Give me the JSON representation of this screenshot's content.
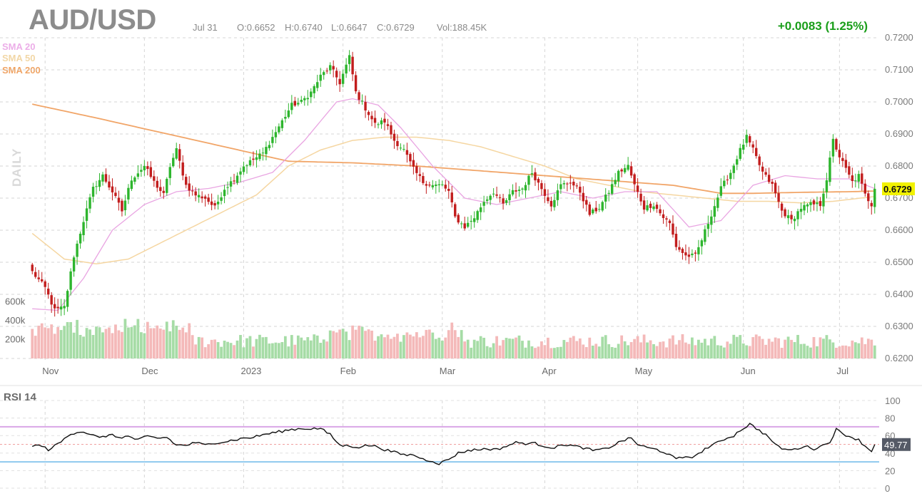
{
  "header": {
    "symbol": "AUD/USD",
    "date": "Jul 31",
    "open": "O:0.6652",
    "high": "H:0.6740",
    "low": "L:0.6647",
    "close": "C:0.6729",
    "volume": "Vol:188.45K",
    "change": "+0.0083 (1.25%)"
  },
  "legend": {
    "sma20": "SMA 20",
    "sma50": "SMA 50",
    "sma200": "SMA 200",
    "period_label": "DAILY"
  },
  "colors": {
    "up": "#2db52d",
    "down": "#c21d1d",
    "volume_up": "#a6dca6",
    "volume_down": "#f4b9b9",
    "sma20": "#e8a0e0",
    "sma50": "#f4d49c",
    "sma200": "#f0a060",
    "price_tag": "#f2f200",
    "rsi_line": "#111111",
    "rsi_upper": "#d9a6e6",
    "rsi_lower": "#8ec8ee",
    "rsi_mid": "#f0a0a0",
    "rsi_tag": "#555a66",
    "change": "#1a9e1a"
  },
  "chart_data": [
    {
      "type": "candlestick",
      "title": "AUD/USD",
      "x_ticks": [
        "Nov",
        "Dec",
        "2023",
        "Feb",
        "Mar",
        "Apr",
        "May",
        "Jun",
        "Jul"
      ],
      "y_ticks": [
        "0.7200",
        "0.7100",
        "0.7000",
        "0.6900",
        "0.6800",
        "0.6700",
        "0.6600",
        "0.6500",
        "0.6400",
        "0.6300",
        "0.6200"
      ],
      "ylim": [
        0.62,
        0.72
      ],
      "last_price_label": "0.6729",
      "last_price": 0.6729,
      "series_names": [
        "SMA 20",
        "SMA 50",
        "SMA 200"
      ],
      "close_anchors": [
        [
          0,
          0.647
        ],
        [
          4,
          0.642
        ],
        [
          7,
          0.635
        ],
        [
          10,
          0.636
        ],
        [
          13,
          0.652
        ],
        [
          16,
          0.663
        ],
        [
          19,
          0.673
        ],
        [
          22,
          0.677
        ],
        [
          25,
          0.672
        ],
        [
          28,
          0.666
        ],
        [
          31,
          0.676
        ],
        [
          35,
          0.68
        ],
        [
          38,
          0.675
        ],
        [
          41,
          0.671
        ],
        [
          43,
          0.68
        ],
        [
          45,
          0.685
        ],
        [
          48,
          0.674
        ],
        [
          51,
          0.671
        ],
        [
          54,
          0.67
        ],
        [
          57,
          0.667
        ],
        [
          60,
          0.673
        ],
        [
          63,
          0.676
        ],
        [
          66,
          0.68
        ],
        [
          69,
          0.682
        ],
        [
          72,
          0.684
        ],
        [
          75,
          0.689
        ],
        [
          78,
          0.694
        ],
        [
          81,
          0.699
        ],
        [
          84,
          0.7
        ],
        [
          87,
          0.703
        ],
        [
          90,
          0.708
        ],
        [
          93,
          0.711
        ],
        [
          96,
          0.706
        ],
        [
          99,
          0.714
        ],
        [
          101,
          0.703
        ],
        [
          104,
          0.698
        ],
        [
          107,
          0.693
        ],
        [
          110,
          0.694
        ],
        [
          113,
          0.688
        ],
        [
          116,
          0.685
        ],
        [
          119,
          0.679
        ],
        [
          122,
          0.675
        ],
        [
          125,
          0.674
        ],
        [
          128,
          0.674
        ],
        [
          130,
          0.672
        ],
        [
          132,
          0.664
        ],
        [
          135,
          0.661
        ],
        [
          138,
          0.664
        ],
        [
          141,
          0.669
        ],
        [
          144,
          0.672
        ],
        [
          147,
          0.668
        ],
        [
          150,
          0.672
        ],
        [
          153,
          0.673
        ],
        [
          156,
          0.678
        ],
        [
          159,
          0.673
        ],
        [
          162,
          0.668
        ],
        [
          165,
          0.674
        ],
        [
          168,
          0.675
        ],
        [
          171,
          0.672
        ],
        [
          174,
          0.665
        ],
        [
          177,
          0.667
        ],
        [
          180,
          0.672
        ],
        [
          183,
          0.678
        ],
        [
          186,
          0.68
        ],
        [
          188,
          0.674
        ],
        [
          191,
          0.667
        ],
        [
          194,
          0.668
        ],
        [
          197,
          0.664
        ],
        [
          199,
          0.662
        ],
        [
          201,
          0.655
        ],
        [
          204,
          0.652
        ],
        [
          207,
          0.652
        ],
        [
          209,
          0.657
        ],
        [
          212,
          0.665
        ],
        [
          215,
          0.673
        ],
        [
          218,
          0.678
        ],
        [
          221,
          0.685
        ],
        [
          223,
          0.689
        ],
        [
          225,
          0.685
        ],
        [
          228,
          0.678
        ],
        [
          231,
          0.674
        ],
        [
          234,
          0.666
        ],
        [
          237,
          0.663
        ],
        [
          240,
          0.667
        ],
        [
          243,
          0.668
        ],
        [
          246,
          0.668
        ],
        [
          248,
          0.676
        ],
        [
          250,
          0.688
        ],
        [
          252,
          0.683
        ],
        [
          254,
          0.679
        ],
        [
          256,
          0.675
        ],
        [
          258,
          0.677
        ],
        [
          260,
          0.671
        ],
        [
          262,
          0.668
        ],
        [
          263,
          0.6729
        ]
      ],
      "sma20_anchors": [
        [
          0,
          0.6355
        ],
        [
          8,
          0.635
        ],
        [
          16,
          0.645
        ],
        [
          25,
          0.66
        ],
        [
          35,
          0.668
        ],
        [
          45,
          0.672
        ],
        [
          55,
          0.673
        ],
        [
          65,
          0.675
        ],
        [
          75,
          0.678
        ],
        [
          85,
          0.688
        ],
        [
          95,
          0.7
        ],
        [
          100,
          0.701
        ],
        [
          108,
          0.699
        ],
        [
          115,
          0.692
        ],
        [
          125,
          0.68
        ],
        [
          135,
          0.67
        ],
        [
          145,
          0.668
        ],
        [
          155,
          0.67
        ],
        [
          165,
          0.672
        ],
        [
          175,
          0.67
        ],
        [
          185,
          0.672
        ],
        [
          195,
          0.672
        ],
        [
          205,
          0.661
        ],
        [
          215,
          0.663
        ],
        [
          225,
          0.674
        ],
        [
          235,
          0.677
        ],
        [
          245,
          0.676
        ],
        [
          255,
          0.676
        ],
        [
          263,
          0.673
        ]
      ],
      "sma50_anchors": [
        [
          0,
          0.659
        ],
        [
          10,
          0.651
        ],
        [
          20,
          0.6495
        ],
        [
          30,
          0.651
        ],
        [
          40,
          0.656
        ],
        [
          50,
          0.661
        ],
        [
          60,
          0.666
        ],
        [
          70,
          0.671
        ],
        [
          80,
          0.68
        ],
        [
          90,
          0.685
        ],
        [
          100,
          0.688
        ],
        [
          110,
          0.689
        ],
        [
          120,
          0.689
        ],
        [
          130,
          0.688
        ],
        [
          140,
          0.686
        ],
        [
          150,
          0.683
        ],
        [
          160,
          0.68
        ],
        [
          170,
          0.676
        ],
        [
          180,
          0.674
        ],
        [
          190,
          0.672
        ],
        [
          200,
          0.671
        ],
        [
          210,
          0.67
        ],
        [
          220,
          0.669
        ],
        [
          230,
          0.669
        ],
        [
          240,
          0.6685
        ],
        [
          250,
          0.669
        ],
        [
          263,
          0.6705
        ]
      ],
      "sma200_anchors": [
        [
          0,
          0.6993
        ],
        [
          20,
          0.695
        ],
        [
          40,
          0.6905
        ],
        [
          60,
          0.686
        ],
        [
          80,
          0.6815
        ],
        [
          100,
          0.681
        ],
        [
          120,
          0.68
        ],
        [
          140,
          0.6785
        ],
        [
          160,
          0.677
        ],
        [
          180,
          0.6755
        ],
        [
          200,
          0.674
        ],
        [
          215,
          0.6715
        ],
        [
          225,
          0.6715
        ],
        [
          240,
          0.6718
        ],
        [
          255,
          0.672
        ],
        [
          263,
          0.6722
        ]
      ],
      "volume": {
        "y_ticks": [
          "600k",
          "400k",
          "200k"
        ],
        "typical_range": [
          110000,
          380000
        ],
        "peak": 380000
      }
    },
    {
      "type": "line",
      "title": "RSI 14",
      "y_ticks": [
        "100",
        "80",
        "60",
        "40",
        "20",
        "0"
      ],
      "ylim": [
        0,
        100
      ],
      "levels": {
        "overbought": 70,
        "oversold": 30,
        "midline": 50
      },
      "last_value_label": "49.77",
      "last_value": 49.77,
      "anchors": [
        [
          0,
          49
        ],
        [
          3,
          48
        ],
        [
          5,
          44
        ],
        [
          7,
          48
        ],
        [
          9,
          53
        ],
        [
          12,
          62
        ],
        [
          15,
          65
        ],
        [
          18,
          62
        ],
        [
          21,
          57
        ],
        [
          24,
          61
        ],
        [
          27,
          58
        ],
        [
          30,
          59
        ],
        [
          33,
          55
        ],
        [
          36,
          59
        ],
        [
          39,
          57
        ],
        [
          42,
          58
        ],
        [
          45,
          49
        ],
        [
          48,
          49
        ],
        [
          51,
          52
        ],
        [
          54,
          49
        ],
        [
          57,
          52
        ],
        [
          60,
          53
        ],
        [
          63,
          55
        ],
        [
          66,
          57
        ],
        [
          69,
          58
        ],
        [
          72,
          61
        ],
        [
          75,
          63
        ],
        [
          78,
          65
        ],
        [
          81,
          67
        ],
        [
          84,
          68
        ],
        [
          87,
          68
        ],
        [
          90,
          68
        ],
        [
          93,
          61
        ],
        [
          96,
          49
        ],
        [
          99,
          48
        ],
        [
          102,
          47
        ],
        [
          105,
          49
        ],
        [
          108,
          47
        ],
        [
          110,
          44
        ],
        [
          113,
          41
        ],
        [
          116,
          38
        ],
        [
          119,
          38
        ],
        [
          122,
          33
        ],
        [
          125,
          31
        ],
        [
          127,
          28
        ],
        [
          130,
          33
        ],
        [
          133,
          40
        ],
        [
          136,
          43
        ],
        [
          139,
          44
        ],
        [
          142,
          45
        ],
        [
          145,
          44
        ],
        [
          148,
          48
        ],
        [
          151,
          52
        ],
        [
          154,
          51
        ],
        [
          157,
          51
        ],
        [
          160,
          48
        ],
        [
          163,
          46
        ],
        [
          166,
          50
        ],
        [
          169,
          48
        ],
        [
          172,
          46
        ],
        [
          175,
          43
        ],
        [
          178,
          44
        ],
        [
          181,
          48
        ],
        [
          184,
          54
        ],
        [
          187,
          57
        ],
        [
          189,
          50
        ],
        [
          192,
          46
        ],
        [
          195,
          44
        ],
        [
          198,
          40
        ],
        [
          201,
          33
        ],
        [
          204,
          36
        ],
        [
          207,
          36
        ],
        [
          210,
          45
        ],
        [
          213,
          50
        ],
        [
          216,
          56
        ],
        [
          219,
          60
        ],
        [
          221,
          66
        ],
        [
          224,
          73
        ],
        [
          227,
          66
        ],
        [
          230,
          58
        ],
        [
          232,
          49
        ],
        [
          235,
          44
        ],
        [
          238,
          44
        ],
        [
          241,
          48
        ],
        [
          244,
          45
        ],
        [
          247,
          49
        ],
        [
          249,
          53
        ],
        [
          251,
          67
        ],
        [
          253,
          62
        ],
        [
          256,
          58
        ],
        [
          258,
          55
        ],
        [
          260,
          48
        ],
        [
          262,
          42
        ],
        [
          263,
          49.77
        ]
      ]
    }
  ]
}
